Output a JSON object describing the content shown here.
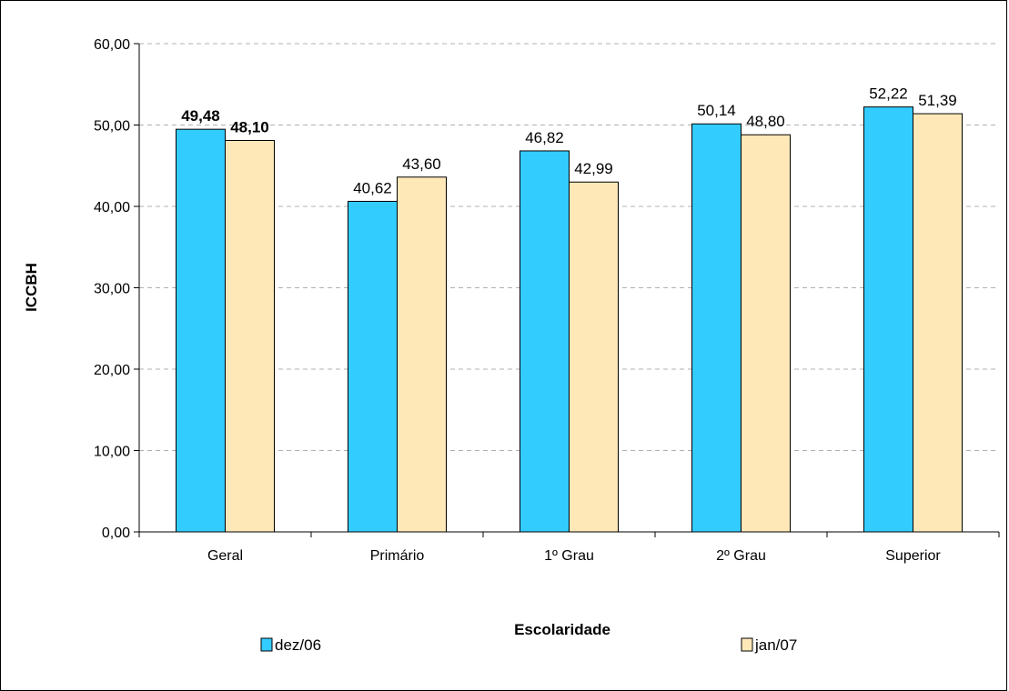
{
  "chart_data": {
    "type": "bar",
    "xlabel": "Escolaridade",
    "ylabel": "ICCBH",
    "ylim": [
      0,
      60
    ],
    "yticks": [
      "0,00",
      "10,00",
      "20,00",
      "30,00",
      "40,00",
      "50,00",
      "60,00"
    ],
    "grid": true,
    "legend_position": "bottom",
    "categories": [
      "Geral",
      "Primário",
      "1º Grau",
      "2º Grau",
      "Superior"
    ],
    "series": [
      {
        "name": "dez/06",
        "color": "#33ccff",
        "values": [
          49.48,
          40.62,
          46.82,
          50.14,
          52.22
        ],
        "labels": [
          "49,48",
          "40,62",
          "46,82",
          "50,14",
          "52,22"
        ]
      },
      {
        "name": "jan/07",
        "color": "#ffe8b8",
        "values": [
          48.1,
          43.6,
          42.99,
          48.8,
          51.39
        ],
        "labels": [
          "48,10",
          "43,60",
          "42,99",
          "48,80",
          "51,39"
        ]
      }
    ],
    "bold_label_categories": [
      "Geral"
    ]
  }
}
